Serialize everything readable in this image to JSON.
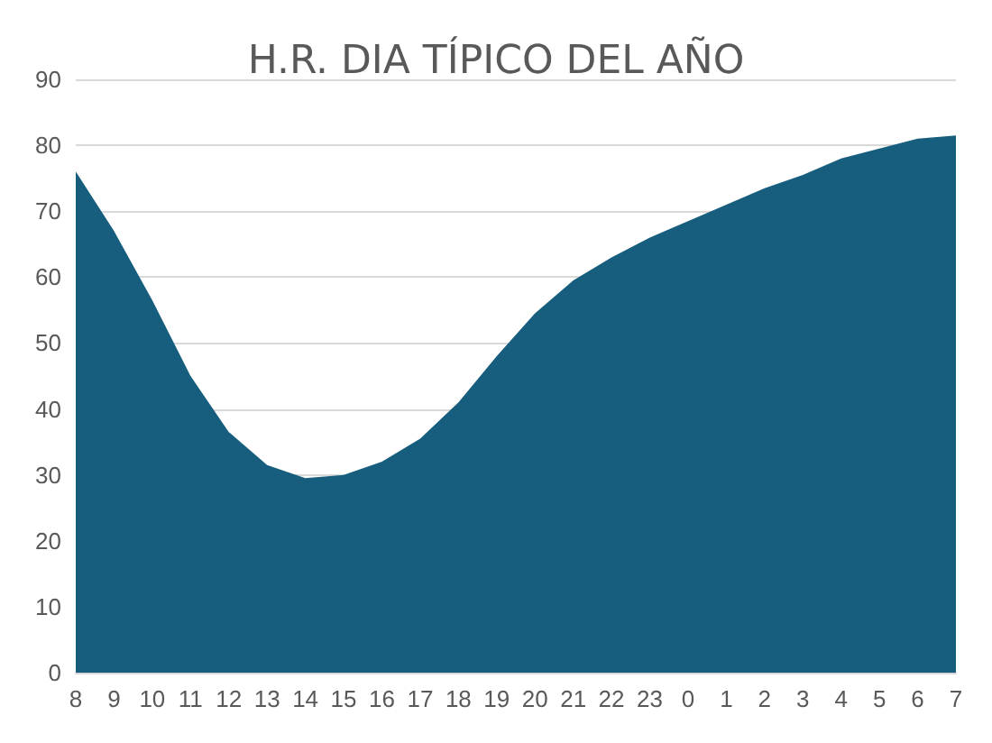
{
  "chart_data": {
    "type": "area",
    "title": "H.R. DIA TÍPICO DEL AÑO",
    "categories": [
      "8",
      "9",
      "10",
      "11",
      "12",
      "13",
      "14",
      "15",
      "16",
      "17",
      "18",
      "19",
      "20",
      "21",
      "22",
      "23",
      "0",
      "1",
      "2",
      "3",
      "4",
      "5",
      "6",
      "7"
    ],
    "values": [
      76,
      67,
      56.5,
      45,
      36.5,
      31.5,
      29.5,
      30,
      32,
      35.5,
      41,
      48,
      54.5,
      59.5,
      63,
      66,
      68.5,
      71,
      73.5,
      75.5,
      78,
      79.5,
      81,
      81.5
    ],
    "color": "#175e7e",
    "ylim": [
      0,
      90
    ],
    "yticks": [
      0,
      10,
      20,
      30,
      40,
      50,
      60,
      70,
      80,
      90
    ],
    "grid": "y"
  }
}
